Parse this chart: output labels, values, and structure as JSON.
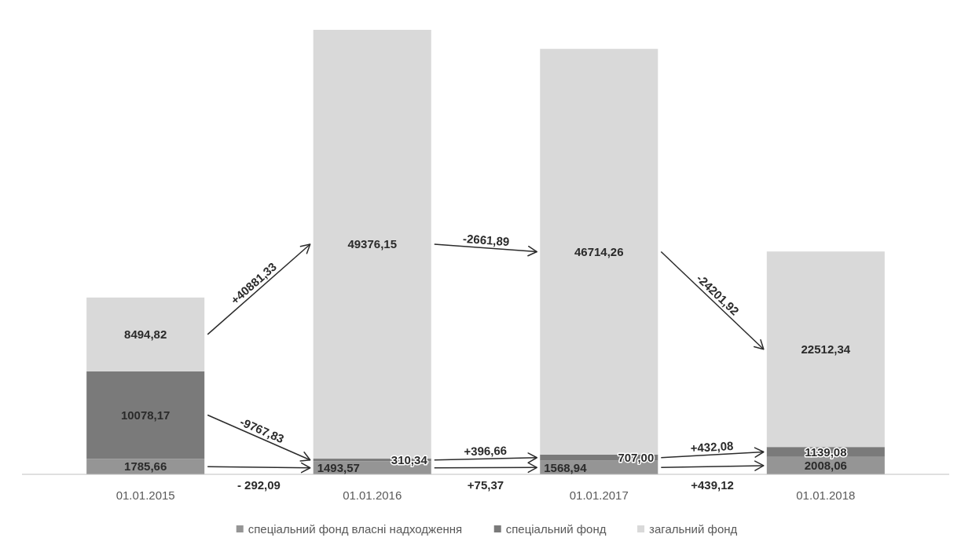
{
  "chart_data": {
    "type": "bar",
    "stacked": true,
    "categories": [
      "01.01.2015",
      "01.01.2016",
      "01.01.2017",
      "01.01.2018"
    ],
    "series": [
      {
        "name": "спеціальний фонд власні надходження",
        "color": "#959595",
        "values": [
          1785.66,
          1493.57,
          1568.94,
          2008.06
        ],
        "value_labels": [
          "1785,66",
          "1493,57",
          "1568,94",
          "2008,06"
        ]
      },
      {
        "name": "спеціальний фонд",
        "color": "#7a7a7a",
        "values": [
          10078.17,
          310.34,
          707.0,
          1139.08
        ],
        "value_labels": [
          "10078,17",
          "310,34",
          "707,00",
          "1139,08"
        ]
      },
      {
        "name": "загальний фонд",
        "color": "#d9d9d9",
        "values": [
          8494.82,
          49376.15,
          46714.26,
          22512.34
        ],
        "value_labels": [
          "8494,82",
          "49376,15",
          "46714,26",
          "22512,34"
        ]
      }
    ],
    "annotations": [
      "- 292,09",
      "-9767,83",
      "+40881,33",
      "+75,37",
      "+396,66",
      "-2661,89",
      "+439,12",
      "+432,08",
      "-24201,92"
    ],
    "legend": "bottom"
  }
}
